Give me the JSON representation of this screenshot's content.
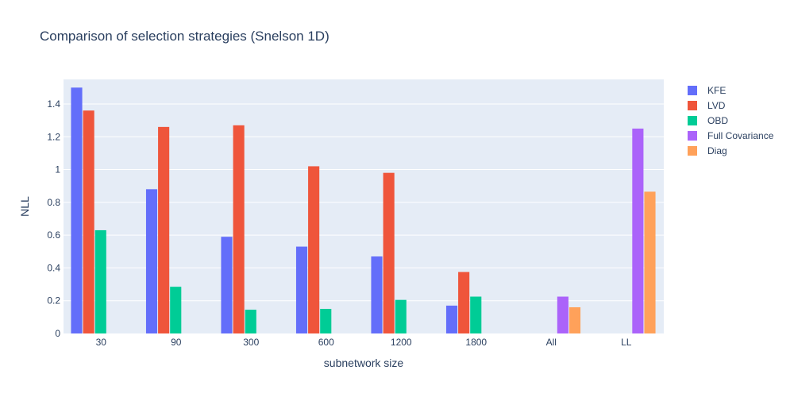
{
  "chart_data": {
    "type": "bar",
    "title": "Comparison of selection strategies (Snelson 1D)",
    "xlabel": "subnetwork size",
    "ylabel": "NLL",
    "categories": [
      "30",
      "90",
      "300",
      "600",
      "1200",
      "1800",
      "All",
      "LL"
    ],
    "ylim": [
      0,
      1.55
    ],
    "yticks": [
      0,
      0.2,
      0.4,
      0.6,
      0.8,
      1,
      1.2,
      1.4
    ],
    "ytick_labels": [
      "0",
      "0.2",
      "0.4",
      "0.6",
      "0.8",
      "1",
      "1.2",
      "1.4"
    ],
    "grid": true,
    "legend_position": "right",
    "plot_background": "#E5ECF6",
    "series": [
      {
        "name": "KFE",
        "color": "#636EFA",
        "values": [
          1.5,
          0.88,
          0.59,
          0.53,
          0.47,
          0.17,
          null,
          null
        ]
      },
      {
        "name": "LVD",
        "color": "#EF553B",
        "values": [
          1.36,
          1.26,
          1.27,
          1.02,
          0.98,
          0.375,
          null,
          null
        ]
      },
      {
        "name": "OBD",
        "color": "#00CC96",
        "values": [
          0.63,
          0.285,
          0.145,
          0.15,
          0.205,
          0.225,
          null,
          null
        ]
      },
      {
        "name": "Full Covariance",
        "color": "#AB63FA",
        "values": [
          null,
          null,
          null,
          null,
          null,
          null,
          0.225,
          1.25
        ]
      },
      {
        "name": "Diag",
        "color": "#FFA15A",
        "values": [
          null,
          null,
          null,
          null,
          null,
          null,
          0.16,
          0.865
        ]
      }
    ]
  }
}
